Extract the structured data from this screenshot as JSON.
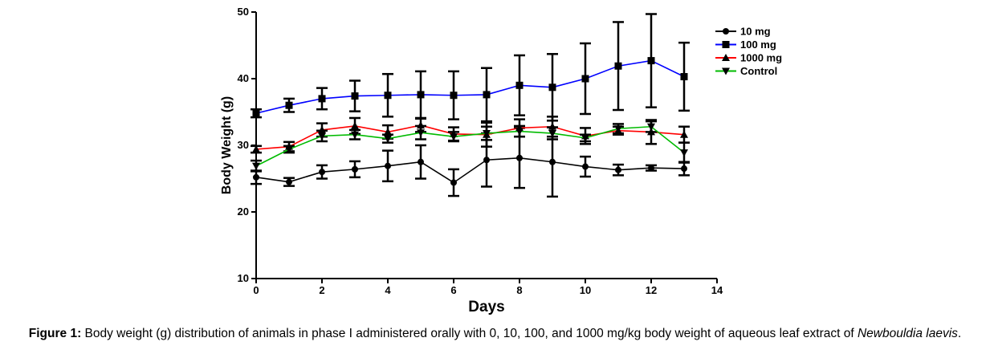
{
  "chart_data": {
    "type": "line",
    "xlabel": "Days",
    "ylabel": "Body Weight (g)",
    "xlim": [
      0,
      14
    ],
    "ylim": [
      10,
      50
    ],
    "xticks": [
      0,
      2,
      4,
      6,
      8,
      10,
      12,
      14
    ],
    "yticks": [
      10,
      20,
      30,
      40,
      50
    ],
    "grid": false,
    "legend_position": "top-right",
    "x": [
      0,
      1,
      2,
      3,
      4,
      5,
      6,
      7,
      8,
      9,
      10,
      11,
      12,
      13
    ],
    "series": [
      {
        "name": "10 mg",
        "color": "#000000",
        "marker": "circle",
        "values": [
          25.2,
          24.5,
          26.0,
          26.4,
          26.9,
          27.5,
          24.4,
          27.8,
          28.1,
          27.5,
          26.8,
          26.3,
          26.6,
          26.5
        ],
        "errors": [
          1.0,
          0.6,
          1.0,
          1.2,
          2.3,
          2.5,
          2.0,
          4.0,
          4.5,
          5.2,
          1.5,
          0.8,
          0.4,
          1.0
        ]
      },
      {
        "name": "100 mg",
        "color": "#0000ff",
        "marker": "square",
        "values": [
          34.8,
          36.0,
          37.0,
          37.4,
          37.5,
          37.6,
          37.5,
          37.6,
          39.0,
          38.7,
          40.0,
          41.9,
          42.7,
          40.3
        ],
        "errors": [
          0.6,
          1.0,
          1.6,
          2.3,
          3.2,
          3.5,
          3.6,
          4.0,
          4.5,
          5.0,
          5.3,
          6.6,
          7.0,
          5.1
        ]
      },
      {
        "name": "1000 mg",
        "color": "#ff0000",
        "marker": "triangle-up",
        "values": [
          29.4,
          29.8,
          32.3,
          32.9,
          32.0,
          33.0,
          31.7,
          31.6,
          32.6,
          32.8,
          31.4,
          32.2,
          32.0,
          31.6
        ],
        "errors": [
          0.5,
          0.7,
          1.0,
          1.2,
          1.0,
          1.0,
          1.0,
          1.8,
          1.3,
          1.5,
          1.2,
          0.6,
          1.8,
          1.2
        ]
      },
      {
        "name": "Control",
        "color": "#00bb00",
        "marker": "triangle-down",
        "values": [
          26.9,
          29.4,
          31.4,
          31.6,
          31.0,
          31.9,
          31.3,
          31.8,
          32.1,
          31.8,
          31.1,
          32.5,
          32.8,
          28.9
        ],
        "errors": [
          0.8,
          0.5,
          0.8,
          0.7,
          0.6,
          1.0,
          0.7,
          1.0,
          0.8,
          0.9,
          0.5,
          0.7,
          0.8,
          1.5
        ]
      }
    ]
  },
  "caption": {
    "label": "Figure 1:",
    "text": "Body weight (g) distribution of animals in phase I administered orally with 0, 10, 100, and 1000 mg/kg body weight of aqueous leaf extract of",
    "species": "Newbouldia laevis",
    "end": "."
  }
}
